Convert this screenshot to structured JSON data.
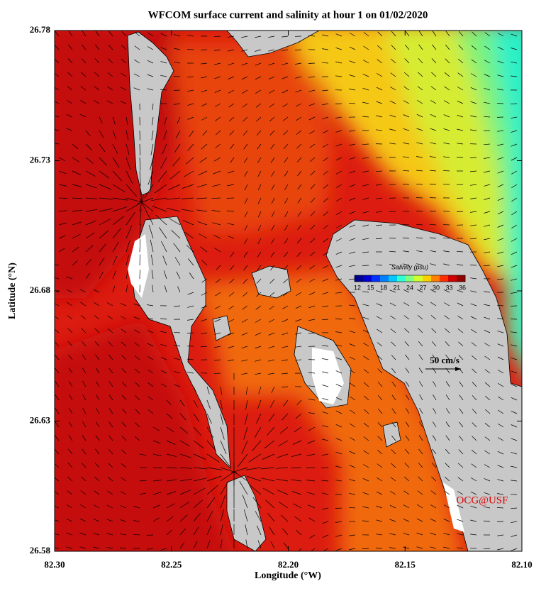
{
  "title": "WFCOM surface current and salinity at hour 1 on 01/02/2020",
  "x_axis": {
    "label": "Longitude (°W)",
    "ticks": [
      "82.30",
      "82.25",
      "82.20",
      "82.15",
      "82.10"
    ]
  },
  "y_axis": {
    "label": "Latitude (°N)",
    "ticks": [
      "26.78",
      "26.73",
      "26.68",
      "26.63",
      "26.58"
    ]
  },
  "colorbar": {
    "title": "Salinity (psu)",
    "ticks": [
      12,
      15,
      18,
      21,
      24,
      27,
      30,
      33,
      36
    ]
  },
  "scale_label": "50 cm/s",
  "credit": "OCG@USF"
}
